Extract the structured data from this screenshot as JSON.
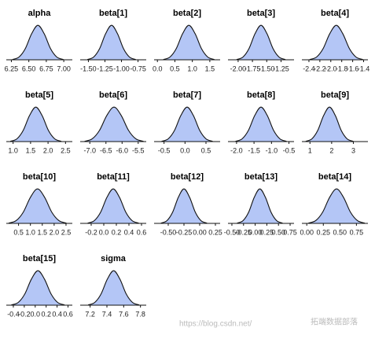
{
  "chart_data": [
    {
      "type": "density",
      "title": "alpha",
      "color": "#b4c6f6",
      "xlim": [
        6.2,
        7.1
      ],
      "ylim": [
        0,
        1.05
      ],
      "xticks": [
        6.25,
        {
          "value": 6.5,
          "label": "6.50"
        },
        6.75,
        {
          "value": 7,
          "label": "7.00"
        }
      ],
      "x": [
        6.27,
        6.36,
        6.45,
        6.54,
        6.63,
        6.72,
        6.81,
        6.9,
        6.99
      ],
      "values": [
        0.011,
        0.08,
        0.325,
        0.755,
        1,
        0.755,
        0.325,
        0.08,
        0.011
      ]
    },
    {
      "type": "density",
      "title": "beta[1]",
      "color": "#b4c6f6",
      "xlim": [
        -1.6,
        -0.65
      ],
      "ylim": [
        0,
        1.05
      ],
      "xticks": [
        {
          "value": -1.5,
          "label": "-1.50"
        },
        -1.25,
        {
          "value": -1,
          "label": "-1.00"
        },
        -0.75
      ],
      "x": [
        -1.51,
        -1.42,
        -1.33,
        -1.24,
        -1.15,
        -1.06,
        -0.97,
        -0.88,
        -0.79
      ],
      "values": [
        0.011,
        0.08,
        0.325,
        0.755,
        1,
        0.755,
        0.325,
        0.08,
        0.011
      ]
    },
    {
      "type": "density",
      "title": "beta[2]",
      "color": "#b4c6f6",
      "xlim": [
        -0.05,
        1.75
      ],
      "ylim": [
        0,
        1.05
      ],
      "xticks": [
        {
          "value": 0,
          "label": "0.0"
        },
        0.5,
        {
          "value": 1,
          "label": "1.0"
        },
        1.5
      ],
      "x": [
        0.18,
        0.36,
        0.54,
        0.72,
        0.9,
        1.08,
        1.26,
        1.44,
        1.62
      ],
      "values": [
        0.011,
        0.08,
        0.325,
        0.755,
        1,
        0.755,
        0.325,
        0.08,
        0.011
      ]
    },
    {
      "type": "density",
      "title": "beta[3]",
      "color": "#b4c6f6",
      "xlim": [
        -2.15,
        -1.05
      ],
      "ylim": [
        0,
        1.05
      ],
      "xticks": [
        {
          "value": -2,
          "label": "-2.00"
        },
        -1.75,
        {
          "value": -1.5,
          "label": "-1.50"
        },
        -1.25
      ],
      "x": [
        -2.02,
        -1.915,
        -1.81,
        -1.705,
        -1.6,
        -1.495,
        -1.39,
        -1.285,
        -1.18
      ],
      "values": [
        0.011,
        0.08,
        0.325,
        0.755,
        1,
        0.755,
        0.325,
        0.08,
        0.011
      ]
    },
    {
      "type": "density",
      "title": "beta[4]",
      "color": "#b4c6f6",
      "xlim": [
        -2.5,
        -1.35
      ],
      "ylim": [
        0,
        1.05
      ],
      "xticks": [
        -2.4,
        -2.2,
        {
          "value": -2,
          "label": "-2.0"
        },
        -1.8,
        -1.6,
        -1.4
      ],
      "x": [
        -2.38,
        -2.26,
        -2.14,
        -2.02,
        -1.9,
        -1.78,
        -1.66,
        -1.54,
        -1.42
      ],
      "values": [
        0.011,
        0.08,
        0.325,
        0.755,
        1,
        0.755,
        0.325,
        0.08,
        0.011
      ]
    },
    {
      "type": "density",
      "title": "beta[5]",
      "color": "#b4c6f6",
      "xlim": [
        0.85,
        2.65
      ],
      "ylim": [
        0,
        1.05
      ],
      "xticks": [
        {
          "value": 1,
          "label": "1.0"
        },
        1.5,
        {
          "value": 2,
          "label": "2.0"
        },
        2.5
      ],
      "x": [
        0.93,
        1.11,
        1.29,
        1.47,
        1.65,
        1.83,
        2.01,
        2.19,
        2.37
      ],
      "values": [
        0.011,
        0.08,
        0.325,
        0.755,
        1,
        0.755,
        0.325,
        0.08,
        0.011
      ]
    },
    {
      "type": "density",
      "title": "beta[6]",
      "color": "#b4c6f6",
      "xlim": [
        -7.25,
        -5.3
      ],
      "ylim": [
        0,
        1.05
      ],
      "xticks": [
        {
          "value": -7,
          "label": "-7.0"
        },
        -6.5,
        {
          "value": -6,
          "label": "-6.0"
        },
        -5.5
      ],
      "x": [
        -7.15,
        -6.925,
        -6.7,
        -6.475,
        -6.25,
        -6.025,
        -5.8,
        -5.575,
        -5.35
      ],
      "values": [
        0.011,
        0.08,
        0.325,
        0.755,
        1,
        0.755,
        0.325,
        0.08,
        0.011
      ]
    },
    {
      "type": "density",
      "title": "beta[7]",
      "color": "#b4c6f6",
      "xlim": [
        -0.7,
        0.8
      ],
      "ylim": [
        0,
        1.05
      ],
      "xticks": [
        -0.5,
        {
          "value": 0,
          "label": "0.0"
        },
        0.5
      ],
      "x": [
        -0.55,
        -0.4,
        -0.25,
        -0.1,
        0.05,
        0.2,
        0.35,
        0.5,
        0.65
      ],
      "values": [
        0.011,
        0.08,
        0.325,
        0.755,
        1,
        0.755,
        0.325,
        0.08,
        0.011
      ]
    },
    {
      "type": "density",
      "title": "beta[8]",
      "color": "#b4c6f6",
      "xlim": [
        -2.2,
        -0.4
      ],
      "ylim": [
        0,
        1.05
      ],
      "xticks": [
        {
          "value": -2,
          "label": "-2.0"
        },
        -1.5,
        {
          "value": -1,
          "label": "-1.0"
        },
        -0.5
      ],
      "x": [
        -2.02,
        -1.84,
        -1.66,
        -1.48,
        -1.3,
        -1.12,
        -0.94,
        -0.76,
        -0.58
      ],
      "values": [
        0.011,
        0.08,
        0.325,
        0.755,
        1,
        0.755,
        0.325,
        0.08,
        0.011
      ]
    },
    {
      "type": "density",
      "title": "beta[9]",
      "color": "#b4c6f6",
      "xlim": [
        0.7,
        3.6
      ],
      "ylim": [
        0,
        1.05
      ],
      "xticks": [
        1,
        2,
        3
      ],
      "x": [
        0.82,
        1.09,
        1.36,
        1.63,
        1.9,
        2.17,
        2.44,
        2.71,
        2.98
      ],
      "values": [
        0.011,
        0.08,
        0.325,
        0.755,
        1,
        0.755,
        0.325,
        0.08,
        0.011
      ]
    },
    {
      "type": "density",
      "title": "beta[10]",
      "color": "#b4c6f6",
      "xlim": [
        0.05,
        2.7
      ],
      "ylim": [
        0,
        1.05
      ],
      "xticks": [
        0.5,
        {
          "value": 1,
          "label": "1.0"
        },
        1.5,
        {
          "value": 2,
          "label": "2.0"
        },
        2.5
      ],
      "x": [
        0.1,
        0.4,
        0.7,
        1.0,
        1.3,
        1.6,
        1.9,
        2.2,
        2.5
      ],
      "values": [
        0.011,
        0.08,
        0.325,
        0.755,
        1,
        0.755,
        0.325,
        0.08,
        0.011
      ]
    },
    {
      "type": "density",
      "title": "beta[11]",
      "color": "#b4c6f6",
      "xlim": [
        -0.35,
        0.65
      ],
      "ylim": [
        0,
        1.05
      ],
      "xticks": [
        -0.2,
        {
          "value": 0,
          "label": "0.0"
        },
        0.2,
        0.4,
        0.6
      ],
      "x": [
        -0.25,
        -0.15,
        -0.05,
        0.05,
        0.15,
        0.25,
        0.35,
        0.45,
        0.55
      ],
      "values": [
        0.011,
        0.08,
        0.325,
        0.755,
        1,
        0.755,
        0.325,
        0.08,
        0.011
      ]
    },
    {
      "type": "density",
      "title": "beta[12]",
      "color": "#b4c6f6",
      "xlim": [
        -0.7,
        0.3
      ],
      "ylim": [
        0,
        1.05
      ],
      "xticks": [
        {
          "value": -0.5,
          "label": "-0.50"
        },
        -0.25,
        {
          "value": 0,
          "label": "0.00"
        },
        0.25
      ],
      "x": [
        -0.61,
        -0.52,
        -0.43,
        -0.34,
        -0.25,
        -0.16,
        -0.07,
        0.02,
        0.11
      ],
      "values": [
        0.011,
        0.08,
        0.325,
        0.755,
        1,
        0.755,
        0.325,
        0.08,
        0.011
      ]
    },
    {
      "type": "density",
      "title": "beta[13]",
      "color": "#b4c6f6",
      "xlim": [
        -0.55,
        0.8
      ],
      "ylim": [
        0,
        1.05
      ],
      "xticks": [
        {
          "value": -0.5,
          "label": "-0.50"
        },
        -0.25,
        {
          "value": 0,
          "label": "0.00"
        },
        0.25,
        {
          "value": 0.5,
          "label": "0.50"
        },
        0.75
      ],
      "x": [
        -0.38,
        -0.26,
        -0.14,
        -0.02,
        0.1,
        0.22,
        0.34,
        0.46,
        0.58
      ],
      "values": [
        0.011,
        0.08,
        0.325,
        0.755,
        1,
        0.755,
        0.325,
        0.08,
        0.011
      ]
    },
    {
      "type": "density",
      "title": "beta[14]",
      "color": "#b4c6f6",
      "xlim": [
        -0.05,
        0.9
      ],
      "ylim": [
        0,
        1.05
      ],
      "xticks": [
        {
          "value": 0,
          "label": "0.00"
        },
        0.25,
        {
          "value": 0.5,
          "label": "0.50"
        },
        0.75
      ],
      "x": [
        0.03,
        0.135,
        0.24,
        0.345,
        0.45,
        0.555,
        0.66,
        0.765,
        0.87
      ],
      "values": [
        0.011,
        0.08,
        0.325,
        0.755,
        1,
        0.755,
        0.325,
        0.08,
        0.011
      ]
    },
    {
      "type": "density",
      "title": "beta[15]",
      "color": "#b4c6f6",
      "xlim": [
        -0.5,
        0.65
      ],
      "ylim": [
        0,
        1.05
      ],
      "xticks": [
        -0.4,
        -0.2,
        {
          "value": 0,
          "label": "0.0"
        },
        0.2,
        0.4,
        0.6
      ],
      "x": [
        -0.43,
        -0.31,
        -0.19,
        -0.07,
        0.05,
        0.17,
        0.29,
        0.41,
        0.53
      ],
      "values": [
        0.011,
        0.08,
        0.325,
        0.755,
        1,
        0.755,
        0.325,
        0.08,
        0.011
      ]
    },
    {
      "type": "density",
      "title": "sigma",
      "color": "#b4c6f6",
      "xlim": [
        7.1,
        7.85
      ],
      "ylim": [
        0,
        1.05
      ],
      "xticks": [
        7.2,
        7.4,
        7.6,
        7.8
      ],
      "x": [
        7.18,
        7.255,
        7.33,
        7.405,
        7.48,
        7.555,
        7.63,
        7.705,
        7.78
      ],
      "values": [
        0.011,
        0.08,
        0.325,
        0.755,
        1,
        0.755,
        0.325,
        0.08,
        0.011
      ]
    }
  ],
  "watermark": {
    "url": "https://blog.csdn.net/",
    "brand": "拓端数据部落"
  }
}
